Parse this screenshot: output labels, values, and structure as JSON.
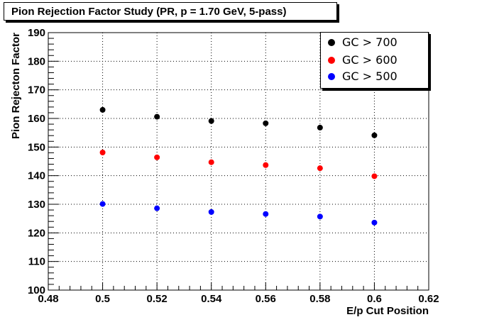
{
  "chart_data": {
    "type": "scatter",
    "title": "Pion Rejection Factor Study (PR, p = 1.70 GeV, 5-pass)",
    "xlabel": "E/p Cut Position",
    "ylabel": "Pion Rejecton Factor",
    "xlim": [
      0.48,
      0.62
    ],
    "ylim": [
      100,
      190
    ],
    "x_ticks": [
      "0.48",
      "0.5",
      "0.52",
      "0.54",
      "0.56",
      "0.58",
      "0.6",
      "0.62"
    ],
    "y_ticks": [
      "100",
      "110",
      "120",
      "130",
      "140",
      "150",
      "160",
      "170",
      "180",
      "190"
    ],
    "grid": true,
    "legend_position": "top-right",
    "x": [
      0.5,
      0.52,
      0.54,
      0.56,
      0.58,
      0.6
    ],
    "series": [
      {
        "name": "GC > 700",
        "color": "#000000",
        "values": [
          163.0,
          160.6,
          159.1,
          158.3,
          156.8,
          154.1
        ]
      },
      {
        "name": "GC > 600",
        "color": "#ff0000",
        "values": [
          148.1,
          146.4,
          144.7,
          143.7,
          142.6,
          139.8
        ]
      },
      {
        "name": "GC > 500",
        "color": "#0000ff",
        "values": [
          130.1,
          128.6,
          127.3,
          126.6,
          125.7,
          123.6
        ]
      }
    ]
  }
}
